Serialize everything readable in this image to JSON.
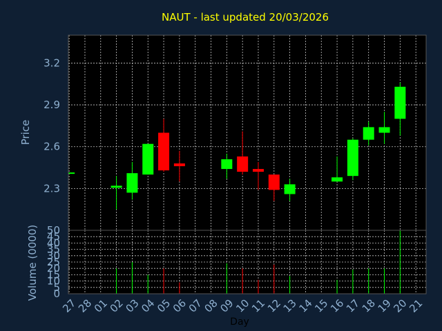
{
  "chart_data": {
    "type": "candlestick",
    "title": "NAUT - last updated 20/03/2026",
    "ylabel": "Price",
    "volume_label": "Volume (0000)",
    "xlabel": "Day",
    "ylim": [
      2.0,
      3.4
    ],
    "yticks": [
      "2.3",
      "2.6",
      "2.9",
      "3.2"
    ],
    "volume_ylim": [
      0,
      50
    ],
    "volume_ticks": [
      "0",
      "5",
      "10",
      "15",
      "20",
      "25",
      "30",
      "35",
      "40",
      "45",
      "50"
    ],
    "x_labels": [
      "27",
      "28",
      "01",
      "02",
      "03",
      "04",
      "05",
      "06",
      "07",
      "08",
      "09",
      "10",
      "11",
      "12",
      "13",
      "14",
      "15",
      "16",
      "17",
      "18",
      "19",
      "20",
      "21"
    ],
    "grid": true,
    "candles": [
      {
        "day": "27",
        "open": 2.41,
        "high": 2.41,
        "low": 2.41,
        "close": 2.41,
        "volume": 0
      },
      {
        "day": "02",
        "open": 2.31,
        "high": 2.39,
        "low": 2.15,
        "close": 2.32,
        "volume": 20
      },
      {
        "day": "03",
        "open": 2.27,
        "high": 2.49,
        "low": 2.22,
        "close": 2.41,
        "volume": 25
      },
      {
        "day": "04",
        "open": 2.4,
        "high": 2.62,
        "low": 2.4,
        "close": 2.62,
        "volume": 15
      },
      {
        "day": "05",
        "open": 2.7,
        "high": 2.8,
        "low": 2.42,
        "close": 2.43,
        "volume": 20
      },
      {
        "day": "06",
        "open": 2.48,
        "high": 2.57,
        "low": 2.35,
        "close": 2.46,
        "volume": 9
      },
      {
        "day": "09",
        "open": 2.44,
        "high": 2.55,
        "low": 2.37,
        "close": 2.51,
        "volume": 24
      },
      {
        "day": "10",
        "open": 2.53,
        "high": 2.71,
        "low": 2.4,
        "close": 2.42,
        "volume": 20
      },
      {
        "day": "11",
        "open": 2.44,
        "high": 2.49,
        "low": 2.29,
        "close": 2.42,
        "volume": 11
      },
      {
        "day": "12",
        "open": 2.4,
        "high": 2.4,
        "low": 2.21,
        "close": 2.29,
        "volume": 23
      },
      {
        "day": "13",
        "open": 2.26,
        "high": 2.37,
        "low": 2.21,
        "close": 2.33,
        "volume": 14
      },
      {
        "day": "16",
        "open": 2.35,
        "high": 2.53,
        "low": 2.35,
        "close": 2.38,
        "volume": 11
      },
      {
        "day": "17",
        "open": 2.39,
        "high": 2.66,
        "low": 2.36,
        "close": 2.65,
        "volume": 19
      },
      {
        "day": "18",
        "open": 2.65,
        "high": 2.78,
        "low": 2.61,
        "close": 2.74,
        "volume": 20
      },
      {
        "day": "19",
        "open": 2.7,
        "high": 2.85,
        "low": 2.62,
        "close": 2.74,
        "volume": 20
      },
      {
        "day": "20",
        "open": 2.8,
        "high": 3.06,
        "low": 2.68,
        "close": 3.03,
        "volume": 50
      }
    ]
  },
  "colors": {
    "background": "#0f1f33",
    "plot_background": "#000000",
    "grid": "#c8c8c8",
    "up": "#00ff00",
    "down": "#ff0000",
    "title": "#ffff00",
    "text": "#8fb0d0"
  }
}
